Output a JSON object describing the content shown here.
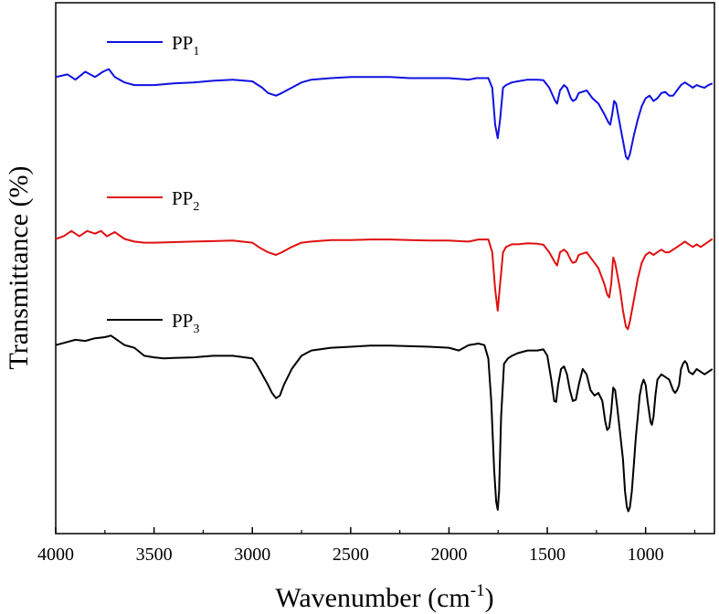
{
  "chart_data": {
    "type": "line",
    "title": "",
    "xlabel": "Wavenumber (cm",
    "xlabel_superscript": "-1",
    "xlabel_suffix": ")",
    "ylabel": "Transmittance (%)",
    "xlim": [
      4000,
      650
    ],
    "x_reversed": true,
    "xticks": [
      4000,
      3500,
      3000,
      2500,
      2000,
      1500,
      1000
    ],
    "y_ticks_shown": false,
    "grid": false,
    "legend_position": "left, inline with each curve",
    "y_units_note": "arbitrary offset transmittance units (0 = bottom of frame, 100 = top of frame)",
    "series": [
      {
        "name": "PP",
        "subscript": "1",
        "color": "#1010e0",
        "points": [
          [
            4000,
            86
          ],
          [
            3940,
            86.5
          ],
          [
            3900,
            85.5
          ],
          [
            3850,
            87
          ],
          [
            3800,
            86
          ],
          [
            3760,
            87
          ],
          [
            3730,
            87.5
          ],
          [
            3700,
            86
          ],
          [
            3650,
            85
          ],
          [
            3600,
            84.5
          ],
          [
            3550,
            84.5
          ],
          [
            3500,
            84.5
          ],
          [
            3400,
            84.8
          ],
          [
            3300,
            85
          ],
          [
            3200,
            85.3
          ],
          [
            3100,
            85.5
          ],
          [
            3000,
            85.2
          ],
          [
            2950,
            84
          ],
          [
            2920,
            83
          ],
          [
            2880,
            82.5
          ],
          [
            2850,
            83
          ],
          [
            2800,
            84
          ],
          [
            2750,
            85
          ],
          [
            2700,
            85.5
          ],
          [
            2600,
            85.8
          ],
          [
            2500,
            86
          ],
          [
            2400,
            86
          ],
          [
            2300,
            86
          ],
          [
            2200,
            85.8
          ],
          [
            2100,
            85.8
          ],
          [
            2000,
            85.8
          ],
          [
            1900,
            85.5
          ],
          [
            1860,
            85.8
          ],
          [
            1800,
            85.8
          ],
          [
            1780,
            84
          ],
          [
            1765,
            77
          ],
          [
            1752,
            74.5
          ],
          [
            1740,
            78
          ],
          [
            1725,
            84
          ],
          [
            1710,
            84.5
          ],
          [
            1680,
            85
          ],
          [
            1650,
            85.2
          ],
          [
            1600,
            85.5
          ],
          [
            1550,
            85.5
          ],
          [
            1520,
            85.4
          ],
          [
            1490,
            84
          ],
          [
            1460,
            81.5
          ],
          [
            1450,
            81
          ],
          [
            1435,
            83.5
          ],
          [
            1415,
            84.5
          ],
          [
            1400,
            84
          ],
          [
            1380,
            82
          ],
          [
            1370,
            81.5
          ],
          [
            1355,
            81.8
          ],
          [
            1340,
            83
          ],
          [
            1300,
            83.5
          ],
          [
            1270,
            82
          ],
          [
            1240,
            81
          ],
          [
            1210,
            79
          ],
          [
            1190,
            77.5
          ],
          [
            1180,
            77
          ],
          [
            1170,
            79
          ],
          [
            1160,
            81.5
          ],
          [
            1150,
            81
          ],
          [
            1140,
            79
          ],
          [
            1120,
            75
          ],
          [
            1110,
            73
          ],
          [
            1100,
            71
          ],
          [
            1090,
            70.5
          ],
          [
            1080,
            71.5
          ],
          [
            1060,
            75
          ],
          [
            1040,
            78
          ],
          [
            1020,
            80.5
          ],
          [
            1000,
            82
          ],
          [
            980,
            82.5
          ],
          [
            960,
            81.5
          ],
          [
            940,
            82
          ],
          [
            920,
            83
          ],
          [
            900,
            83.2
          ],
          [
            880,
            82.5
          ],
          [
            860,
            82.5
          ],
          [
            840,
            83.5
          ],
          [
            820,
            84.5
          ],
          [
            800,
            85
          ],
          [
            780,
            84.5
          ],
          [
            760,
            84
          ],
          [
            740,
            84.5
          ],
          [
            720,
            84.2
          ],
          [
            700,
            84
          ],
          [
            680,
            84.5
          ],
          [
            660,
            84.8
          ]
        ]
      },
      {
        "name": "PP",
        "subscript": "2",
        "color": "#e01010",
        "points": [
          [
            4000,
            55.5
          ],
          [
            3960,
            56
          ],
          [
            3920,
            57
          ],
          [
            3880,
            56
          ],
          [
            3840,
            57
          ],
          [
            3800,
            56.5
          ],
          [
            3770,
            57
          ],
          [
            3740,
            56
          ],
          [
            3700,
            56.8
          ],
          [
            3650,
            55.5
          ],
          [
            3600,
            55
          ],
          [
            3550,
            54.8
          ],
          [
            3500,
            54.8
          ],
          [
            3400,
            54.9
          ],
          [
            3300,
            55
          ],
          [
            3200,
            55.1
          ],
          [
            3100,
            55.2
          ],
          [
            3000,
            54.8
          ],
          [
            2960,
            53.8
          ],
          [
            2920,
            53
          ],
          [
            2880,
            52.5
          ],
          [
            2850,
            53
          ],
          [
            2800,
            54
          ],
          [
            2750,
            54.8
          ],
          [
            2700,
            55
          ],
          [
            2600,
            55.3
          ],
          [
            2500,
            55.3
          ],
          [
            2400,
            55.4
          ],
          [
            2300,
            55.4
          ],
          [
            2200,
            55.3
          ],
          [
            2100,
            55.2
          ],
          [
            2000,
            55.2
          ],
          [
            1900,
            55
          ],
          [
            1850,
            55.4
          ],
          [
            1800,
            55.4
          ],
          [
            1780,
            53
          ],
          [
            1765,
            46
          ],
          [
            1752,
            42
          ],
          [
            1740,
            47
          ],
          [
            1725,
            53
          ],
          [
            1710,
            54
          ],
          [
            1680,
            54.5
          ],
          [
            1650,
            54.5
          ],
          [
            1600,
            54.7
          ],
          [
            1550,
            54.6
          ],
          [
            1520,
            54.4
          ],
          [
            1490,
            53
          ],
          [
            1460,
            51
          ],
          [
            1450,
            50.5
          ],
          [
            1435,
            53
          ],
          [
            1415,
            53.5
          ],
          [
            1400,
            53
          ],
          [
            1380,
            51.5
          ],
          [
            1370,
            51
          ],
          [
            1355,
            51.2
          ],
          [
            1340,
            52.5
          ],
          [
            1300,
            53
          ],
          [
            1270,
            51.5
          ],
          [
            1240,
            50
          ],
          [
            1210,
            47
          ],
          [
            1195,
            45
          ],
          [
            1185,
            44.5
          ],
          [
            1175,
            47
          ],
          [
            1165,
            52
          ],
          [
            1155,
            51
          ],
          [
            1145,
            49
          ],
          [
            1130,
            46
          ],
          [
            1115,
            42
          ],
          [
            1100,
            39
          ],
          [
            1090,
            38.5
          ],
          [
            1080,
            40
          ],
          [
            1060,
            44
          ],
          [
            1040,
            48
          ],
          [
            1020,
            51
          ],
          [
            1000,
            52.5
          ],
          [
            980,
            53
          ],
          [
            960,
            52.5
          ],
          [
            940,
            53
          ],
          [
            920,
            53.5
          ],
          [
            900,
            53
          ],
          [
            880,
            53
          ],
          [
            860,
            53.5
          ],
          [
            840,
            54
          ],
          [
            820,
            54.5
          ],
          [
            800,
            55
          ],
          [
            780,
            54.5
          ],
          [
            760,
            54
          ],
          [
            740,
            54.5
          ],
          [
            720,
            54
          ],
          [
            700,
            54.5
          ],
          [
            680,
            55
          ],
          [
            660,
            55.5
          ]
        ]
      },
      {
        "name": "PP",
        "subscript": "3",
        "color": "#000000",
        "points": [
          [
            4000,
            35.5
          ],
          [
            3950,
            36
          ],
          [
            3900,
            36.5
          ],
          [
            3850,
            36.3
          ],
          [
            3800,
            36.8
          ],
          [
            3750,
            37
          ],
          [
            3720,
            37.3
          ],
          [
            3700,
            36.8
          ],
          [
            3650,
            35.5
          ],
          [
            3600,
            35
          ],
          [
            3550,
            33.5
          ],
          [
            3500,
            33.2
          ],
          [
            3450,
            33
          ],
          [
            3400,
            33.1
          ],
          [
            3300,
            33.2
          ],
          [
            3200,
            33.5
          ],
          [
            3100,
            33.5
          ],
          [
            3000,
            33
          ],
          [
            2980,
            32
          ],
          [
            2950,
            30
          ],
          [
            2920,
            28
          ],
          [
            2900,
            26.5
          ],
          [
            2880,
            25.5
          ],
          [
            2860,
            26
          ],
          [
            2840,
            28
          ],
          [
            2800,
            31
          ],
          [
            2750,
            33.5
          ],
          [
            2700,
            34.5
          ],
          [
            2600,
            35
          ],
          [
            2500,
            35.2
          ],
          [
            2400,
            35.4
          ],
          [
            2300,
            35.4
          ],
          [
            2200,
            35.3
          ],
          [
            2100,
            35.2
          ],
          [
            2000,
            35
          ],
          [
            1950,
            34.5
          ],
          [
            1900,
            35.5
          ],
          [
            1850,
            35.8
          ],
          [
            1820,
            35.5
          ],
          [
            1800,
            33
          ],
          [
            1785,
            25
          ],
          [
            1770,
            12
          ],
          [
            1760,
            6
          ],
          [
            1752,
            4.5
          ],
          [
            1745,
            8
          ],
          [
            1735,
            22
          ],
          [
            1720,
            32
          ],
          [
            1700,
            33
          ],
          [
            1680,
            33.5
          ],
          [
            1650,
            34
          ],
          [
            1600,
            34.5
          ],
          [
            1550,
            34.5
          ],
          [
            1520,
            34.7
          ],
          [
            1500,
            33.5
          ],
          [
            1480,
            29
          ],
          [
            1465,
            25
          ],
          [
            1455,
            24.8
          ],
          [
            1445,
            28
          ],
          [
            1430,
            31
          ],
          [
            1415,
            31.5
          ],
          [
            1400,
            30
          ],
          [
            1385,
            27
          ],
          [
            1370,
            25
          ],
          [
            1355,
            25.2
          ],
          [
            1340,
            28
          ],
          [
            1320,
            31
          ],
          [
            1300,
            30
          ],
          [
            1280,
            27
          ],
          [
            1260,
            26
          ],
          [
            1240,
            26.5
          ],
          [
            1220,
            25
          ],
          [
            1205,
            21
          ],
          [
            1195,
            19.5
          ],
          [
            1185,
            20
          ],
          [
            1175,
            23
          ],
          [
            1165,
            27.5
          ],
          [
            1155,
            27
          ],
          [
            1145,
            24
          ],
          [
            1130,
            19
          ],
          [
            1115,
            14
          ],
          [
            1105,
            8
          ],
          [
            1095,
            5
          ],
          [
            1088,
            4.2
          ],
          [
            1080,
            5
          ],
          [
            1070,
            8
          ],
          [
            1060,
            13
          ],
          [
            1050,
            18
          ],
          [
            1040,
            22
          ],
          [
            1030,
            26
          ],
          [
            1020,
            28
          ],
          [
            1010,
            29
          ],
          [
            1000,
            28
          ],
          [
            990,
            25
          ],
          [
            975,
            21
          ],
          [
            968,
            20.5
          ],
          [
            960,
            22
          ],
          [
            950,
            26
          ],
          [
            940,
            29
          ],
          [
            920,
            30
          ],
          [
            900,
            29.5
          ],
          [
            880,
            29
          ],
          [
            860,
            27
          ],
          [
            850,
            26.5
          ],
          [
            840,
            27
          ],
          [
            830,
            28
          ],
          [
            820,
            31
          ],
          [
            810,
            32
          ],
          [
            800,
            32.5
          ],
          [
            790,
            32
          ],
          [
            780,
            30.5
          ],
          [
            760,
            30
          ],
          [
            740,
            31
          ],
          [
            720,
            30.5
          ],
          [
            700,
            30
          ],
          [
            680,
            30.5
          ],
          [
            660,
            31
          ]
        ]
      }
    ]
  }
}
